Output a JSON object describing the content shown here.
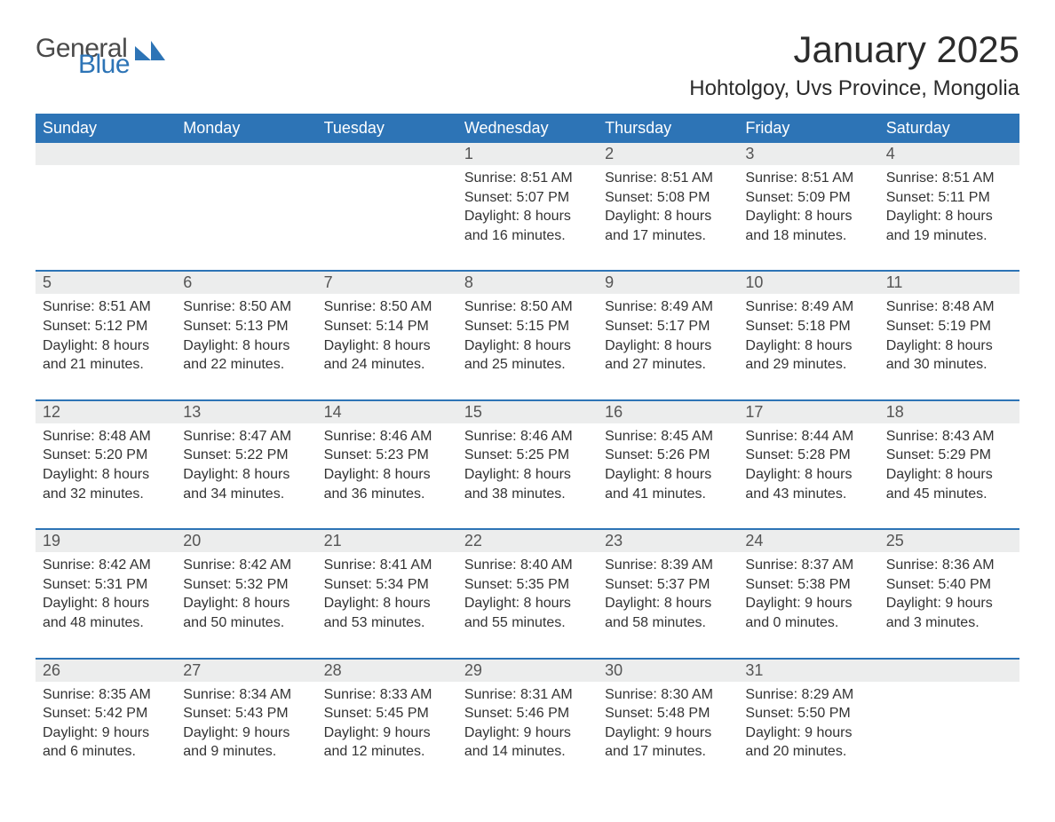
{
  "brand": {
    "general": "General",
    "blue": "Blue",
    "logo_color": "#2d74b6"
  },
  "title": "January 2025",
  "location": "Hohtolgoy, Uvs Province, Mongolia",
  "colors": {
    "header_bg": "#2d74b6",
    "header_text": "#ffffff",
    "band_bg": "#eceded",
    "row_divider": "#2d74b6",
    "body_text": "#333333",
    "page_bg": "#ffffff"
  },
  "typography": {
    "title_fontsize": 42,
    "location_fontsize": 24,
    "header_fontsize": 18,
    "cell_fontsize": 16
  },
  "layout": {
    "columns": 7,
    "rows": 5
  },
  "weekdays": [
    "Sunday",
    "Monday",
    "Tuesday",
    "Wednesday",
    "Thursday",
    "Friday",
    "Saturday"
  ],
  "labels": {
    "sunrise": "Sunrise:",
    "sunset": "Sunset:",
    "daylight": "Daylight:"
  },
  "weeks": [
    [
      {
        "blank": true
      },
      {
        "blank": true
      },
      {
        "blank": true
      },
      {
        "day": "1",
        "sunrise": "8:51 AM",
        "sunset": "5:07 PM",
        "daylight_h": 8,
        "daylight_m": 16
      },
      {
        "day": "2",
        "sunrise": "8:51 AM",
        "sunset": "5:08 PM",
        "daylight_h": 8,
        "daylight_m": 17
      },
      {
        "day": "3",
        "sunrise": "8:51 AM",
        "sunset": "5:09 PM",
        "daylight_h": 8,
        "daylight_m": 18
      },
      {
        "day": "4",
        "sunrise": "8:51 AM",
        "sunset": "5:11 PM",
        "daylight_h": 8,
        "daylight_m": 19
      }
    ],
    [
      {
        "day": "5",
        "sunrise": "8:51 AM",
        "sunset": "5:12 PM",
        "daylight_h": 8,
        "daylight_m": 21
      },
      {
        "day": "6",
        "sunrise": "8:50 AM",
        "sunset": "5:13 PM",
        "daylight_h": 8,
        "daylight_m": 22
      },
      {
        "day": "7",
        "sunrise": "8:50 AM",
        "sunset": "5:14 PM",
        "daylight_h": 8,
        "daylight_m": 24
      },
      {
        "day": "8",
        "sunrise": "8:50 AM",
        "sunset": "5:15 PM",
        "daylight_h": 8,
        "daylight_m": 25
      },
      {
        "day": "9",
        "sunrise": "8:49 AM",
        "sunset": "5:17 PM",
        "daylight_h": 8,
        "daylight_m": 27
      },
      {
        "day": "10",
        "sunrise": "8:49 AM",
        "sunset": "5:18 PM",
        "daylight_h": 8,
        "daylight_m": 29
      },
      {
        "day": "11",
        "sunrise": "8:48 AM",
        "sunset": "5:19 PM",
        "daylight_h": 8,
        "daylight_m": 30
      }
    ],
    [
      {
        "day": "12",
        "sunrise": "8:48 AM",
        "sunset": "5:20 PM",
        "daylight_h": 8,
        "daylight_m": 32
      },
      {
        "day": "13",
        "sunrise": "8:47 AM",
        "sunset": "5:22 PM",
        "daylight_h": 8,
        "daylight_m": 34
      },
      {
        "day": "14",
        "sunrise": "8:46 AM",
        "sunset": "5:23 PM",
        "daylight_h": 8,
        "daylight_m": 36
      },
      {
        "day": "15",
        "sunrise": "8:46 AM",
        "sunset": "5:25 PM",
        "daylight_h": 8,
        "daylight_m": 38
      },
      {
        "day": "16",
        "sunrise": "8:45 AM",
        "sunset": "5:26 PM",
        "daylight_h": 8,
        "daylight_m": 41
      },
      {
        "day": "17",
        "sunrise": "8:44 AM",
        "sunset": "5:28 PM",
        "daylight_h": 8,
        "daylight_m": 43
      },
      {
        "day": "18",
        "sunrise": "8:43 AM",
        "sunset": "5:29 PM",
        "daylight_h": 8,
        "daylight_m": 45
      }
    ],
    [
      {
        "day": "19",
        "sunrise": "8:42 AM",
        "sunset": "5:31 PM",
        "daylight_h": 8,
        "daylight_m": 48
      },
      {
        "day": "20",
        "sunrise": "8:42 AM",
        "sunset": "5:32 PM",
        "daylight_h": 8,
        "daylight_m": 50
      },
      {
        "day": "21",
        "sunrise": "8:41 AM",
        "sunset": "5:34 PM",
        "daylight_h": 8,
        "daylight_m": 53
      },
      {
        "day": "22",
        "sunrise": "8:40 AM",
        "sunset": "5:35 PM",
        "daylight_h": 8,
        "daylight_m": 55
      },
      {
        "day": "23",
        "sunrise": "8:39 AM",
        "sunset": "5:37 PM",
        "daylight_h": 8,
        "daylight_m": 58
      },
      {
        "day": "24",
        "sunrise": "8:37 AM",
        "sunset": "5:38 PM",
        "daylight_h": 9,
        "daylight_m": 0
      },
      {
        "day": "25",
        "sunrise": "8:36 AM",
        "sunset": "5:40 PM",
        "daylight_h": 9,
        "daylight_m": 3
      }
    ],
    [
      {
        "day": "26",
        "sunrise": "8:35 AM",
        "sunset": "5:42 PM",
        "daylight_h": 9,
        "daylight_m": 6
      },
      {
        "day": "27",
        "sunrise": "8:34 AM",
        "sunset": "5:43 PM",
        "daylight_h": 9,
        "daylight_m": 9
      },
      {
        "day": "28",
        "sunrise": "8:33 AM",
        "sunset": "5:45 PM",
        "daylight_h": 9,
        "daylight_m": 12
      },
      {
        "day": "29",
        "sunrise": "8:31 AM",
        "sunset": "5:46 PM",
        "daylight_h": 9,
        "daylight_m": 14
      },
      {
        "day": "30",
        "sunrise": "8:30 AM",
        "sunset": "5:48 PM",
        "daylight_h": 9,
        "daylight_m": 17
      },
      {
        "day": "31",
        "sunrise": "8:29 AM",
        "sunset": "5:50 PM",
        "daylight_h": 9,
        "daylight_m": 20
      },
      {
        "blank": true
      }
    ]
  ]
}
